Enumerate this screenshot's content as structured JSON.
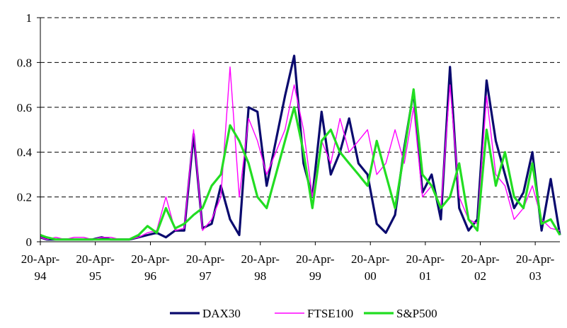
{
  "chart_data": {
    "type": "line",
    "title": "",
    "xlabel": "",
    "ylabel": "",
    "ylim": [
      0,
      1
    ],
    "yticks": [
      "0",
      "0.2",
      "0.4",
      "0.6",
      "0.8",
      "1"
    ],
    "xlim": [
      "1994-04-20",
      "2003-10-01"
    ],
    "xticks": [
      {
        "date": "1994-04-20",
        "label_line1": "20-Apr-",
        "label_line2": "94"
      },
      {
        "date": "1995-04-20",
        "label_line1": "20-Apr-",
        "label_line2": "95"
      },
      {
        "date": "1996-04-20",
        "label_line1": "20-Apr-",
        "label_line2": "96"
      },
      {
        "date": "1997-04-20",
        "label_line1": "20-Apr-",
        "label_line2": "97"
      },
      {
        "date": "1998-04-20",
        "label_line1": "20-Apr-",
        "label_line2": "98"
      },
      {
        "date": "1999-04-20",
        "label_line1": "20-Apr-",
        "label_line2": "99"
      },
      {
        "date": "2000-04-20",
        "label_line1": "20-Apr-",
        "label_line2": "00"
      },
      {
        "date": "2001-04-20",
        "label_line1": "20-Apr-",
        "label_line2": "01"
      },
      {
        "date": "2002-04-20",
        "label_line1": "20-Apr-",
        "label_line2": "02"
      },
      {
        "date": "2003-04-20",
        "label_line1": "20-Apr-",
        "label_line2": "03"
      }
    ],
    "grid": "horizontal-dashed",
    "legend": "bottom-center",
    "x": [
      "1994-04-20",
      "1994-06-01",
      "1994-08-01",
      "1994-10-01",
      "1994-12-01",
      "1995-02-01",
      "1995-04-01",
      "1995-06-01",
      "1995-08-01",
      "1995-10-01",
      "1995-12-01",
      "1996-02-01",
      "1996-04-01",
      "1996-06-01",
      "1996-08-01",
      "1996-10-01",
      "1996-12-01",
      "1997-02-01",
      "1997-04-01",
      "1997-06-01",
      "1997-08-01",
      "1997-10-01",
      "1997-12-01",
      "1998-02-01",
      "1998-04-01",
      "1998-06-01",
      "1998-08-01",
      "1998-10-01",
      "1998-12-01",
      "1999-02-01",
      "1999-04-01",
      "1999-06-01",
      "1999-08-01",
      "1999-10-01",
      "1999-12-01",
      "2000-02-01",
      "2000-04-01",
      "2000-06-01",
      "2000-08-01",
      "2000-10-01",
      "2000-12-01",
      "2001-02-01",
      "2001-04-01",
      "2001-06-01",
      "2001-08-01",
      "2001-10-01",
      "2001-12-01",
      "2002-02-01",
      "2002-04-01",
      "2002-06-01",
      "2002-08-01",
      "2002-10-01",
      "2002-12-01",
      "2003-02-01",
      "2003-04-01",
      "2003-06-01",
      "2003-08-01",
      "2003-10-01"
    ],
    "series": [
      {
        "name": "DAX30",
        "color": "#0a0a6e",
        "stroke": 3.2,
        "values": [
          0.02,
          0.01,
          0.01,
          0.01,
          0.01,
          0.01,
          0.01,
          0.02,
          0.01,
          0.01,
          0.01,
          0.02,
          0.03,
          0.04,
          0.02,
          0.05,
          0.05,
          0.48,
          0.06,
          0.08,
          0.25,
          0.1,
          0.03,
          0.6,
          0.58,
          0.25,
          0.45,
          0.65,
          0.83,
          0.35,
          0.2,
          0.58,
          0.3,
          0.4,
          0.55,
          0.35,
          0.3,
          0.08,
          0.04,
          0.12,
          0.42,
          0.67,
          0.22,
          0.3,
          0.1,
          0.78,
          0.15,
          0.05,
          0.1,
          0.72,
          0.45,
          0.3,
          0.15,
          0.22,
          0.4,
          0.05,
          0.28,
          0.03
        ]
      },
      {
        "name": "FTSE100",
        "color": "#ff00ff",
        "stroke": 1.4,
        "values": [
          0.02,
          0.01,
          0.02,
          0.01,
          0.02,
          0.02,
          0.01,
          0.02,
          0.02,
          0.01,
          0.01,
          0.02,
          0.04,
          0.05,
          0.2,
          0.05,
          0.06,
          0.5,
          0.05,
          0.1,
          0.2,
          0.78,
          0.2,
          0.55,
          0.45,
          0.3,
          0.4,
          0.5,
          0.7,
          0.5,
          0.2,
          0.45,
          0.35,
          0.55,
          0.4,
          0.45,
          0.5,
          0.3,
          0.35,
          0.5,
          0.35,
          0.6,
          0.2,
          0.25,
          0.15,
          0.7,
          0.2,
          0.1,
          0.08,
          0.65,
          0.3,
          0.25,
          0.1,
          0.15,
          0.25,
          0.1,
          0.06,
          0.05
        ]
      },
      {
        "name": "S&P500",
        "color": "#22dd22",
        "stroke": 3.2,
        "values": [
          0.03,
          0.02,
          0.01,
          0.01,
          0.01,
          0.01,
          0.01,
          0.01,
          0.01,
          0.01,
          0.01,
          0.03,
          0.07,
          0.04,
          0.15,
          0.06,
          0.08,
          0.12,
          0.15,
          0.25,
          0.3,
          0.52,
          0.45,
          0.35,
          0.2,
          0.15,
          0.3,
          0.45,
          0.6,
          0.4,
          0.15,
          0.45,
          0.5,
          0.4,
          0.35,
          0.3,
          0.25,
          0.45,
          0.3,
          0.15,
          0.4,
          0.68,
          0.3,
          0.25,
          0.15,
          0.2,
          0.35,
          0.1,
          0.05,
          0.5,
          0.25,
          0.4,
          0.2,
          0.15,
          0.35,
          0.08,
          0.1,
          0.03
        ]
      }
    ]
  }
}
